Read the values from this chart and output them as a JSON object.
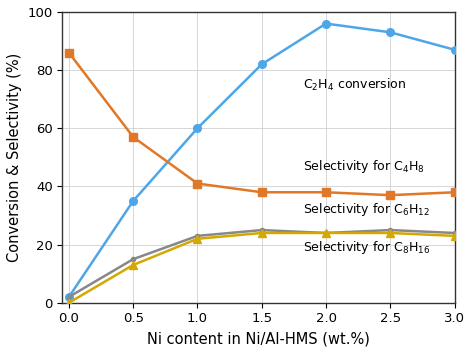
{
  "x": [
    0,
    0.5,
    1,
    1.5,
    2,
    2.5,
    3
  ],
  "C2H4_conversion": [
    2,
    35,
    60,
    82,
    96,
    93,
    87
  ],
  "sel_C4H8": [
    86,
    57,
    41,
    38,
    38,
    37,
    38
  ],
  "sel_C6H12": [
    2,
    15,
    23,
    25,
    24,
    25,
    24
  ],
  "sel_C8H16": [
    0,
    13,
    22,
    24,
    24,
    24,
    23
  ],
  "colors": {
    "C2H4": "#4da6e8",
    "C4H8": "#e07828",
    "C6H12": "#888888",
    "C8H16": "#d4a800"
  },
  "xlabel": "Ni content in Ni/Al-HMS (wt.%)",
  "ylabel": "Conversion & Selectivity (%)",
  "ylim": [
    0,
    100
  ],
  "xlim": [
    -0.05,
    3.0
  ],
  "yticks": [
    0,
    20,
    40,
    60,
    80,
    100
  ],
  "xticks": [
    0,
    0.5,
    1,
    1.5,
    2,
    2.5,
    3
  ],
  "ann_C2H4_x": 1.82,
  "ann_C2H4_y": 72,
  "ann_C4H8_x": 1.82,
  "ann_C4H8_y": 44,
  "ann_C6H12_x": 1.82,
  "ann_C6H12_y": 29,
  "ann_C8H16_x": 1.82,
  "ann_C8H16_y": 16,
  "label_C2H4": "C$_2$H$_4$ conversion",
  "label_C4H8": "Selectivity for C$_4$H$_8$",
  "label_C6H12": "Selectivity for C$_6$H$_{12}$",
  "label_C8H16": "Selectivity for C$_8$H$_{16}$",
  "fontsize_annotation": 9,
  "fontsize_axis_label": 10.5,
  "fontsize_ticks": 9.5,
  "linewidth": 1.8,
  "markersize": 5.5,
  "fig_width": 4.72,
  "fig_height": 3.53,
  "dpi": 100
}
